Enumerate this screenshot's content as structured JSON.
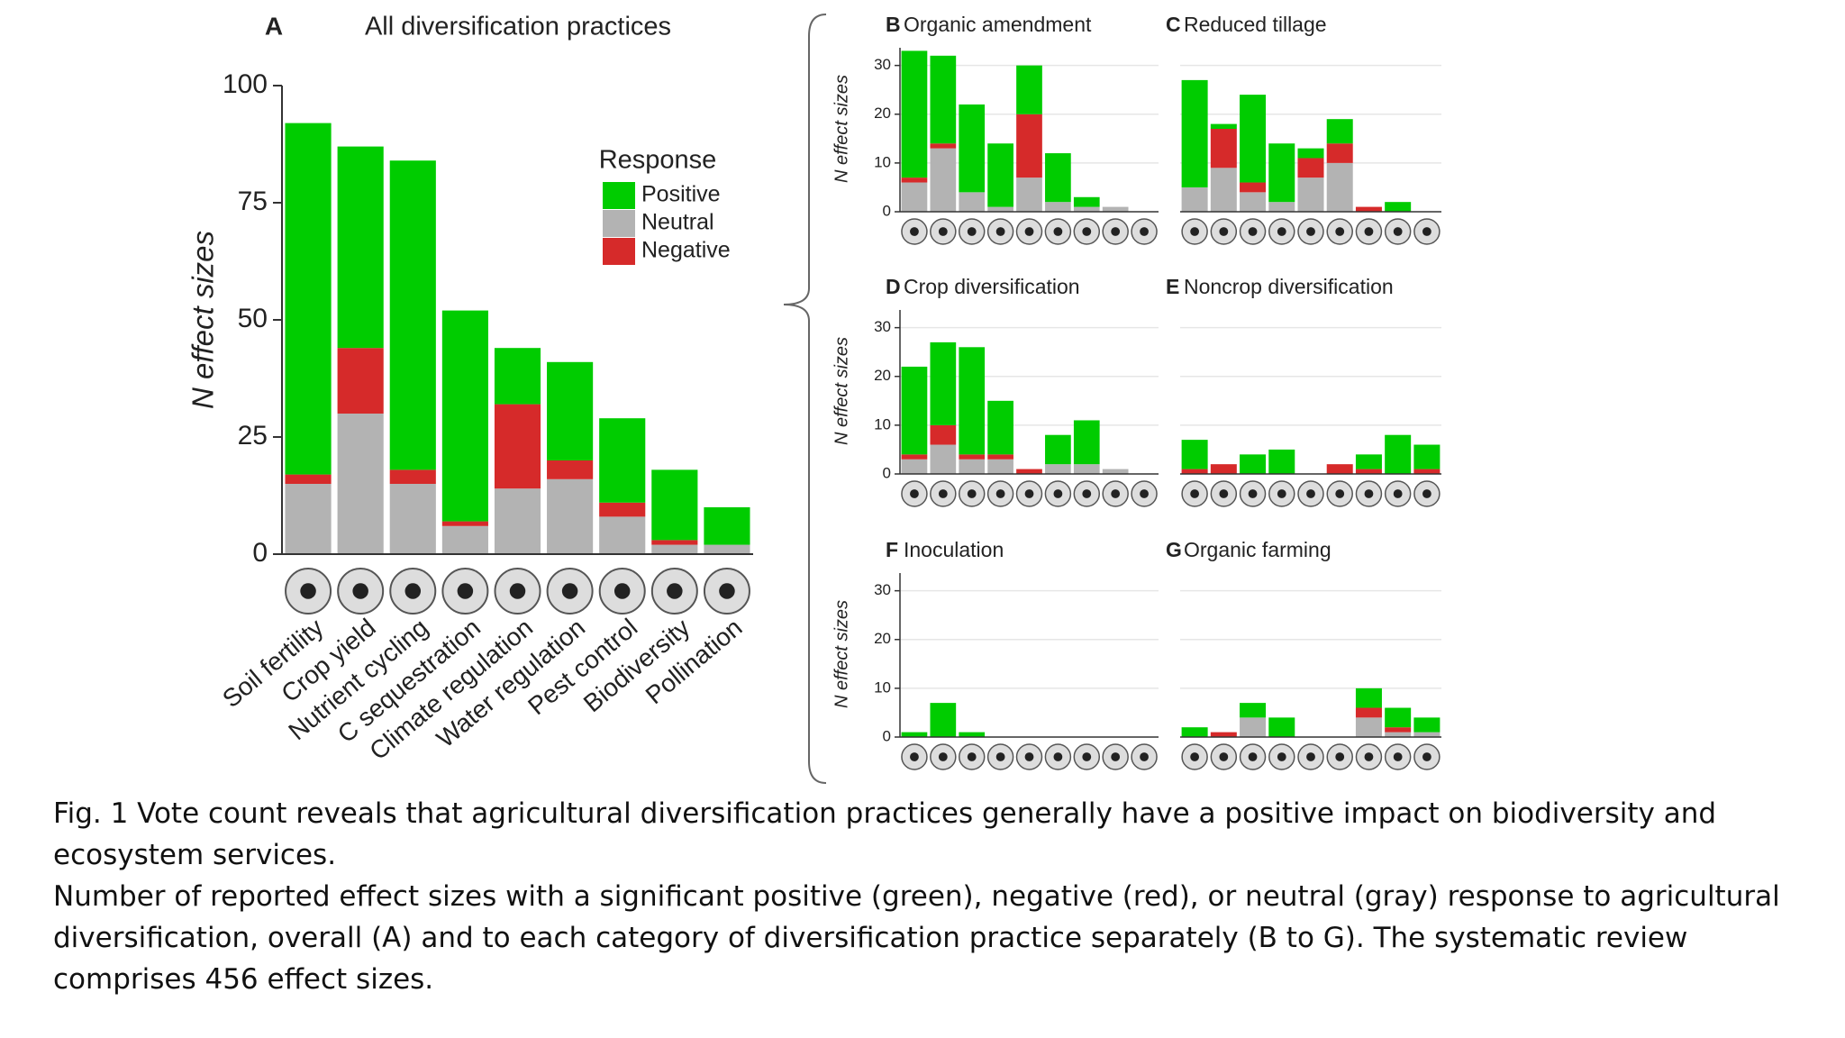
{
  "chart_data": [
    {
      "type": "bar",
      "label": "A",
      "title": "All diversification practices",
      "ylabel": "N effect sizes",
      "categories": [
        "Soil fertility",
        "Crop yield",
        "Nutrient cycling",
        "C sequestration",
        "Climate regulation",
        "Water regulation",
        "Pest control",
        "Biodiversity",
        "Pollination"
      ],
      "legend_title": "Response",
      "series": [
        {
          "name": "Positive",
          "color": "#00cc00",
          "values": [
            75,
            43,
            66,
            45,
            12,
            21,
            18,
            15,
            8
          ]
        },
        {
          "name": "Neutral",
          "color": "#b3b3b3",
          "values": [
            15,
            30,
            15,
            6,
            14,
            16,
            8,
            2,
            2
          ]
        },
        {
          "name": "Negative",
          "color": "#d62a2a",
          "values": [
            2,
            14,
            3,
            1,
            18,
            4,
            3,
            1,
            0
          ]
        }
      ],
      "ylim": [
        0,
        100
      ],
      "yticks": [
        0,
        25,
        50,
        75,
        100
      ],
      "grid": false
    },
    {
      "type": "bar",
      "label": "B",
      "title": "Organic amendment",
      "ylabel": "N effect sizes",
      "series": [
        {
          "color": "#00cc00",
          "values": [
            26,
            18,
            18,
            13,
            10,
            10,
            2,
            0,
            0
          ]
        },
        {
          "color": "#b3b3b3",
          "values": [
            6,
            13,
            4,
            1,
            7,
            2,
            1,
            1,
            0
          ]
        },
        {
          "color": "#d62a2a",
          "values": [
            1,
            1,
            0,
            0,
            13,
            0,
            0,
            0,
            0
          ]
        }
      ],
      "ylim": [
        0,
        34
      ],
      "yticks": [
        0,
        10,
        20,
        30
      ],
      "grid": true
    },
    {
      "type": "bar",
      "label": "C",
      "title": "Reduced tillage",
      "series": [
        {
          "color": "#00cc00",
          "values": [
            22,
            1,
            18,
            12,
            2,
            5,
            0,
            2,
            0
          ]
        },
        {
          "color": "#b3b3b3",
          "values": [
            5,
            9,
            4,
            2,
            7,
            10,
            0,
            0,
            0
          ]
        },
        {
          "color": "#d62a2a",
          "values": [
            0,
            8,
            2,
            0,
            4,
            4,
            1,
            0,
            0
          ]
        }
      ],
      "ylim": [
        0,
        34
      ],
      "yticks": [
        0,
        10,
        20,
        30
      ],
      "grid": true
    },
    {
      "type": "bar",
      "label": "D",
      "title": "Crop diversification",
      "ylabel": "N effect sizes",
      "series": [
        {
          "color": "#00cc00",
          "values": [
            18,
            17,
            22,
            11,
            0,
            6,
            9,
            0,
            0
          ]
        },
        {
          "color": "#b3b3b3",
          "values": [
            3,
            6,
            3,
            3,
            0,
            2,
            2,
            1,
            0
          ]
        },
        {
          "color": "#d62a2a",
          "values": [
            1,
            4,
            1,
            1,
            1,
            0,
            0,
            0,
            0
          ]
        }
      ],
      "ylim": [
        0,
        34
      ],
      "yticks": [
        0,
        10,
        20,
        30
      ],
      "grid": true
    },
    {
      "type": "bar",
      "label": "E",
      "title": "Noncrop diversification",
      "series": [
        {
          "color": "#00cc00",
          "values": [
            6,
            0,
            4,
            5,
            0,
            0,
            3,
            8,
            5
          ]
        },
        {
          "color": "#b3b3b3",
          "values": [
            0,
            0,
            0,
            0,
            0,
            0,
            0,
            0,
            0
          ]
        },
        {
          "color": "#d62a2a",
          "values": [
            1,
            2,
            0,
            0,
            0,
            2,
            1,
            0,
            1
          ]
        }
      ],
      "ylim": [
        0,
        34
      ],
      "yticks": [
        0,
        10,
        20,
        30
      ],
      "grid": true
    },
    {
      "type": "bar",
      "label": "F",
      "title": "Inoculation",
      "ylabel": "N effect sizes",
      "series": [
        {
          "color": "#00cc00",
          "values": [
            1,
            7,
            1,
            0,
            0,
            0,
            0,
            0,
            0
          ]
        },
        {
          "color": "#b3b3b3",
          "values": [
            0,
            0,
            0,
            0,
            0,
            0,
            0,
            0,
            0
          ]
        },
        {
          "color": "#d62a2a",
          "values": [
            0,
            0,
            0,
            0,
            0,
            0,
            0,
            0,
            0
          ]
        }
      ],
      "ylim": [
        0,
        34
      ],
      "yticks": [
        0,
        10,
        20,
        30
      ],
      "grid": true
    },
    {
      "type": "bar",
      "label": "G",
      "title": "Organic farming",
      "series": [
        {
          "color": "#00cc00",
          "values": [
            2,
            0,
            3,
            4,
            0,
            0,
            4,
            4,
            3
          ]
        },
        {
          "color": "#b3b3b3",
          "values": [
            0,
            0,
            4,
            0,
            0,
            0,
            4,
            1,
            1
          ]
        },
        {
          "color": "#d62a2a",
          "values": [
            0,
            1,
            0,
            0,
            0,
            0,
            2,
            1,
            0
          ]
        }
      ],
      "ylim": [
        0,
        34
      ],
      "yticks": [
        0,
        10,
        20,
        30
      ],
      "grid": true
    }
  ],
  "caption": [
    "Fig. 1 Vote count reveals that agricultural diversification practices generally have a positive impact on biodiversity and ecosystem services.",
    "Number of reported effect sizes with a significant positive (green), negative (red), or neutral (gray) response to agricultural diversification, overall (A) and to each category of diversification practice separately (B to G). The systematic review comprises 456 effect sizes."
  ]
}
